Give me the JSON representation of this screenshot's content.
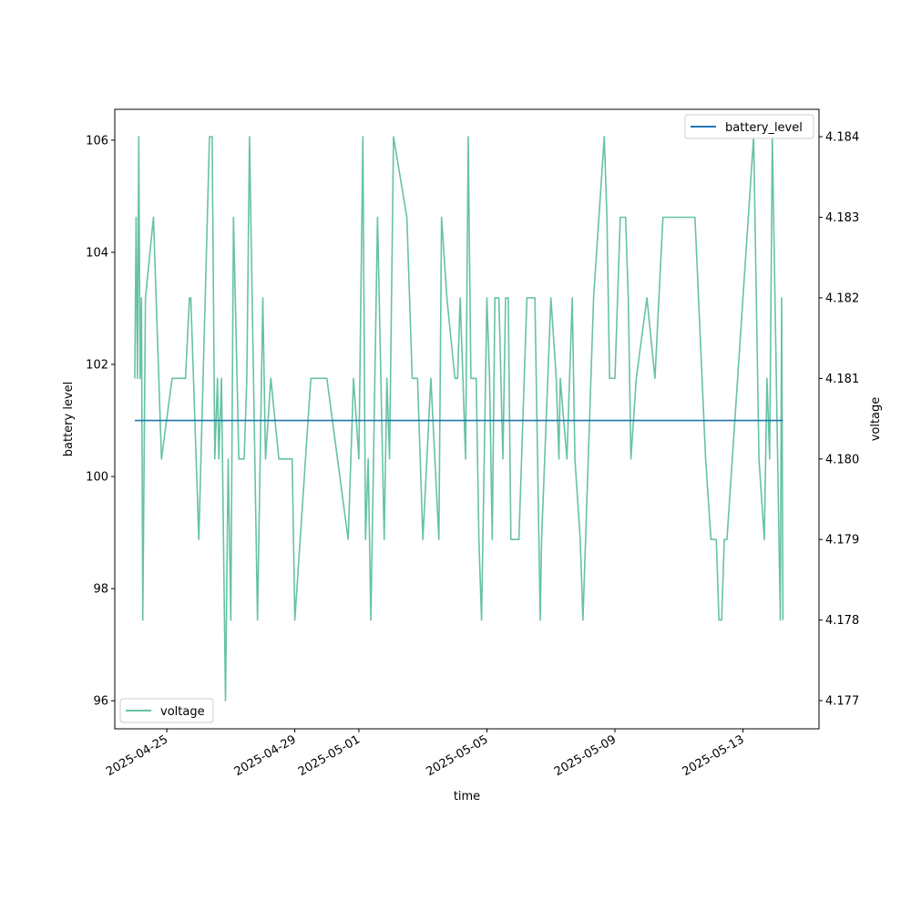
{
  "chart_data": {
    "type": "line",
    "xlabel": "time",
    "ylabel_left": "battery level",
    "ylabel_right": "voltage",
    "x_ticks": [
      "2025-04-25",
      "2025-04-29",
      "2025-05-01",
      "2025-05-05",
      "2025-05-09",
      "2025-05-13"
    ],
    "y_left_ticks": [
      96,
      98,
      100,
      102,
      104,
      106
    ],
    "y_right_ticks": [
      4.177,
      4.178,
      4.179,
      4.18,
      4.181,
      4.182,
      4.183,
      4.184
    ],
    "xlim": [
      "2025-04-23T09:00",
      "2025-05-15T09:00"
    ],
    "ylim_left": [
      95.5,
      106.55
    ],
    "ylim_right": [
      4.17665,
      4.18434
    ],
    "legend_left": "lower-left",
    "legend_right": "upper-right",
    "grid": false,
    "colors": {
      "battery_level": "#1f77b4",
      "voltage": "#66c2a5"
    },
    "series": [
      {
        "name": "battery_level",
        "axis": "left",
        "x": [
          "2025-04-24T00:00",
          "2025-05-14T06:00"
        ],
        "values": [
          101,
          101
        ]
      },
      {
        "name": "voltage",
        "axis": "right",
        "x": [
          "2025-04-24T00:00",
          "2025-04-24T01:00",
          "2025-04-24T02:00",
          "2025-04-24T03:00",
          "2025-04-24T04:00",
          "2025-04-24T05:00",
          "2025-04-24T06:00",
          "2025-04-24T08:00",
          "2025-04-24T14:00",
          "2025-04-24T20:00",
          "2025-04-25T04:00",
          "2025-04-25T14:00",
          "2025-04-25T17:00",
          "2025-04-25T18:00",
          "2025-04-26T00:00",
          "2025-04-26T08:00",
          "2025-04-26T10:00",
          "2025-04-26T12:00",
          "2025-04-26T14:00",
          "2025-04-26T15:00",
          "2025-04-26T17:00",
          "2025-04-26T20:00",
          "2025-04-26T22:00",
          "2025-04-27T00:00",
          "2025-04-27T02:00",
          "2025-04-27T06:00",
          "2025-04-27T08:00",
          "2025-04-27T10:00",
          "2025-04-27T12:00",
          "2025-04-27T14:00",
          "2025-04-27T20:00",
          "2025-04-28T00:00",
          "2025-04-28T02:00",
          "2025-04-28T06:00",
          "2025-04-28T12:00",
          "2025-04-28T16:00",
          "2025-04-28T20:00",
          "2025-04-28T22:00",
          "2025-04-29T00:00",
          "2025-04-29T12:00",
          "2025-04-30T00:00",
          "2025-04-30T16:00",
          "2025-04-30T20:00",
          "2025-05-01T00:00",
          "2025-05-01T03:00",
          "2025-05-01T05:00",
          "2025-05-01T07:00",
          "2025-05-01T09:00",
          "2025-05-01T12:00",
          "2025-05-01T14:00",
          "2025-05-01T19:00",
          "2025-05-01T21:00",
          "2025-05-01T23:00",
          "2025-05-02T02:00",
          "2025-05-02T12:00",
          "2025-05-02T16:00",
          "2025-05-02T20:00",
          "2025-05-03T00:00",
          "2025-05-03T06:00",
          "2025-05-03T12:00",
          "2025-05-03T14:00",
          "2025-05-03T18:00",
          "2025-05-04T00:00",
          "2025-05-04T02:00",
          "2025-05-04T04:00",
          "2025-05-04T06:00",
          "2025-05-04T08:00",
          "2025-05-04T10:00",
          "2025-05-04T12:00",
          "2025-05-04T14:00",
          "2025-05-04T16:00",
          "2025-05-04T18:00",
          "2025-05-04T20:00",
          "2025-05-04T22:00",
          "2025-05-05T00:00",
          "2025-05-05T02:00",
          "2025-05-05T03:00",
          "2025-05-05T04:00",
          "2025-05-05T06:00",
          "2025-05-05T08:00",
          "2025-05-05T09:00",
          "2025-05-05T12:00",
          "2025-05-05T14:00",
          "2025-05-05T16:00",
          "2025-05-05T18:00",
          "2025-05-06T00:00",
          "2025-05-06T06:00",
          "2025-05-06T08:00",
          "2025-05-06T12:00",
          "2025-05-06T16:00",
          "2025-05-06T17:00",
          "2025-05-07T00:00",
          "2025-05-07T04:00",
          "2025-05-07T06:00",
          "2025-05-07T07:00",
          "2025-05-07T12:00",
          "2025-05-07T14:00",
          "2025-05-07T16:00",
          "2025-05-07T18:00",
          "2025-05-07T22:00",
          "2025-05-08T00:00",
          "2025-05-08T08:00",
          "2025-05-08T12:00",
          "2025-05-08T16:00",
          "2025-05-08T18:00",
          "2025-05-08T20:00",
          "2025-05-09T00:00",
          "2025-05-09T04:00",
          "2025-05-09T06:00",
          "2025-05-09T08:00",
          "2025-05-09T10:00",
          "2025-05-09T12:00",
          "2025-05-09T16:00",
          "2025-05-10T00:00",
          "2025-05-10T06:00",
          "2025-05-10T12:00",
          "2025-05-11T12:00",
          "2025-05-11T20:00",
          "2025-05-12T00:00",
          "2025-05-12T04:00",
          "2025-05-12T06:00",
          "2025-05-12T08:00",
          "2025-05-12T10:00",
          "2025-05-12T12:00",
          "2025-05-13T00:00",
          "2025-05-13T08:00",
          "2025-05-13T12:00",
          "2025-05-13T16:00",
          "2025-05-13T18:00",
          "2025-05-13T20:00",
          "2025-05-13T22:00",
          "2025-05-14T00:00",
          "2025-05-14T02:00",
          "2025-05-14T04:00",
          "2025-05-14T05:00",
          "2025-05-14T06:00"
        ],
        "values": [
          4.181,
          4.183,
          4.181,
          4.184,
          4.181,
          4.182,
          4.178,
          4.182,
          4.183,
          4.18,
          4.181,
          4.181,
          4.182,
          4.182,
          4.179,
          4.184,
          4.184,
          4.18,
          4.181,
          4.18,
          4.181,
          4.177,
          4.18,
          4.178,
          4.183,
          4.18,
          4.18,
          4.18,
          4.181,
          4.184,
          4.178,
          4.182,
          4.18,
          4.181,
          4.18,
          4.18,
          4.18,
          4.18,
          4.178,
          4.181,
          4.181,
          4.179,
          4.181,
          4.18,
          4.184,
          4.179,
          4.18,
          4.178,
          4.181,
          4.183,
          4.179,
          4.181,
          4.18,
          4.184,
          4.183,
          4.181,
          4.181,
          4.179,
          4.181,
          4.179,
          4.183,
          4.182,
          4.181,
          4.181,
          4.182,
          4.181,
          4.18,
          4.184,
          4.181,
          4.181,
          4.181,
          4.179,
          4.178,
          4.18,
          4.182,
          4.181,
          4.18,
          4.179,
          4.182,
          4.182,
          4.182,
          4.18,
          4.182,
          4.182,
          4.179,
          4.179,
          4.182,
          4.182,
          4.182,
          4.178,
          4.179,
          4.182,
          4.181,
          4.18,
          4.181,
          4.18,
          4.181,
          4.182,
          4.18,
          4.179,
          4.178,
          4.182,
          4.183,
          4.184,
          4.183,
          4.181,
          4.181,
          4.183,
          4.183,
          4.183,
          4.182,
          4.18,
          4.181,
          4.182,
          4.181,
          4.183,
          4.183,
          4.18,
          4.179,
          4.179,
          4.178,
          4.178,
          4.179,
          4.179,
          4.182,
          4.184,
          4.18,
          4.179,
          4.181,
          4.18,
          4.184,
          4.182,
          4.18,
          4.178,
          4.182,
          4.178
        ]
      }
    ]
  }
}
